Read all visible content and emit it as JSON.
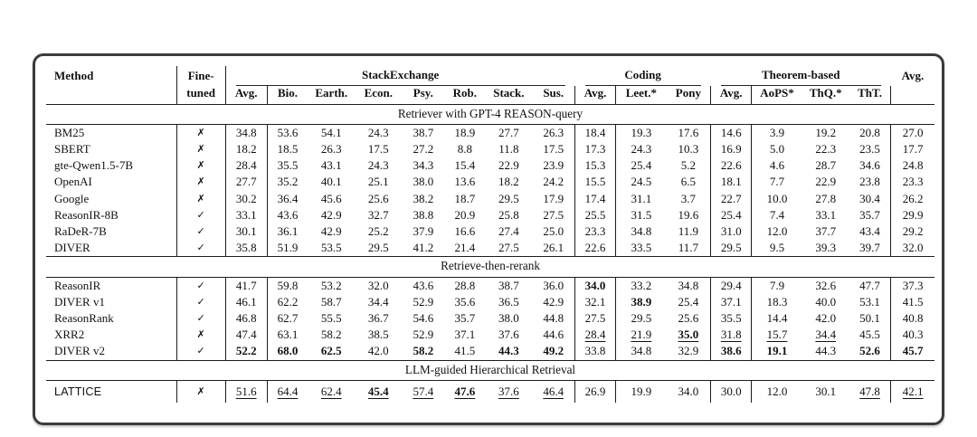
{
  "marks": {
    "yes": "✓",
    "no": "✗"
  },
  "table": {
    "header": {
      "method": "Method",
      "finetuned": [
        "Fine-",
        "tuned"
      ],
      "groups": [
        {
          "label": "StackExchange",
          "cols": [
            "Avg.",
            "Bio.",
            "Earth.",
            "Econ.",
            "Psy.",
            "Rob.",
            "Stack.",
            "Sus."
          ]
        },
        {
          "label": "Coding",
          "cols": [
            "Avg.",
            "Leet.*",
            "Pony"
          ]
        },
        {
          "label": "Theorem-based",
          "cols": [
            "Avg.",
            "AoPS*",
            "ThQ.*",
            "ThT."
          ]
        }
      ],
      "subcols": [
        "Avg.",
        "Bio.",
        "Earth.",
        "Econ.",
        "Psy.",
        "Rob.",
        "Stack.",
        "Sus.",
        "Avg.",
        "Leet.*",
        "Pony",
        "Avg.",
        "AoPS*",
        "ThQ.*",
        "ThT."
      ],
      "overall": "Avg."
    },
    "sections": [
      {
        "title": "Retriever with GPT-4 REASON-query",
        "rows": [
          {
            "method": "BM25",
            "finetuned": false,
            "values": [
              "34.8",
              "53.6",
              "54.1",
              "24.3",
              "38.7",
              "18.9",
              "27.7",
              "26.3",
              "18.4",
              "19.3",
              "17.6",
              "14.6",
              "3.9",
              "19.2",
              "20.8",
              "27.0"
            ],
            "bold": [],
            "underline": []
          },
          {
            "method": "SBERT",
            "finetuned": false,
            "values": [
              "18.2",
              "18.5",
              "26.3",
              "17.5",
              "27.2",
              "8.8",
              "11.8",
              "17.5",
              "17.3",
              "24.3",
              "10.3",
              "16.9",
              "5.0",
              "22.3",
              "23.5",
              "17.7"
            ],
            "bold": [],
            "underline": []
          },
          {
            "method": "gte-Qwen1.5-7B",
            "finetuned": false,
            "values": [
              "28.4",
              "35.5",
              "43.1",
              "24.3",
              "34.3",
              "15.4",
              "22.9",
              "23.9",
              "15.3",
              "25.4",
              "5.2",
              "22.6",
              "4.6",
              "28.7",
              "34.6",
              "24.8"
            ],
            "bold": [],
            "underline": []
          },
          {
            "method": "OpenAI",
            "finetuned": false,
            "values": [
              "27.7",
              "35.2",
              "40.1",
              "25.1",
              "38.0",
              "13.6",
              "18.2",
              "24.2",
              "15.5",
              "24.5",
              "6.5",
              "18.1",
              "7.7",
              "22.9",
              "23.8",
              "23.3"
            ],
            "bold": [],
            "underline": []
          },
          {
            "method": "Google",
            "finetuned": false,
            "values": [
              "30.2",
              "36.4",
              "45.6",
              "25.6",
              "38.2",
              "18.7",
              "29.5",
              "17.9",
              "17.4",
              "31.1",
              "3.7",
              "22.7",
              "10.0",
              "27.8",
              "30.4",
              "26.2"
            ],
            "bold": [],
            "underline": []
          },
          {
            "method": "ReasonIR-8B",
            "finetuned": true,
            "values": [
              "33.1",
              "43.6",
              "42.9",
              "32.7",
              "38.8",
              "20.9",
              "25.8",
              "27.5",
              "25.5",
              "31.5",
              "19.6",
              "25.4",
              "7.4",
              "33.1",
              "35.7",
              "29.9"
            ],
            "bold": [],
            "underline": []
          },
          {
            "method": "RaDeR-7B",
            "finetuned": true,
            "values": [
              "30.1",
              "36.1",
              "42.9",
              "25.2",
              "37.9",
              "16.6",
              "27.4",
              "25.0",
              "23.3",
              "34.8",
              "11.9",
              "31.0",
              "12.0",
              "37.7",
              "43.4",
              "29.2"
            ],
            "bold": [],
            "underline": []
          },
          {
            "method": "DIVER",
            "finetuned": true,
            "values": [
              "35.8",
              "51.9",
              "53.5",
              "29.5",
              "41.2",
              "21.4",
              "27.5",
              "26.1",
              "22.6",
              "33.5",
              "11.7",
              "29.5",
              "9.5",
              "39.3",
              "39.7",
              "32.0"
            ],
            "bold": [],
            "underline": []
          }
        ]
      },
      {
        "title": "Retrieve-then-rerank",
        "rows": [
          {
            "method": "ReasonIR",
            "finetuned": true,
            "values": [
              "41.7",
              "59.8",
              "53.2",
              "32.0",
              "43.6",
              "28.8",
              "38.7",
              "36.0",
              "34.0",
              "33.2",
              "34.8",
              "29.4",
              "7.9",
              "32.6",
              "47.7",
              "37.3"
            ],
            "bold": [
              8
            ],
            "underline": []
          },
          {
            "method": "DIVER v1",
            "finetuned": true,
            "values": [
              "46.1",
              "62.2",
              "58.7",
              "34.4",
              "52.9",
              "35.6",
              "36.5",
              "42.9",
              "32.1",
              "38.9",
              "25.4",
              "37.1",
              "18.3",
              "40.0",
              "53.1",
              "41.5"
            ],
            "bold": [
              9
            ],
            "underline": []
          },
          {
            "method": "ReasonRank",
            "finetuned": true,
            "values": [
              "46.8",
              "62.7",
              "55.5",
              "36.7",
              "54.6",
              "35.7",
              "38.0",
              "44.8",
              "27.5",
              "29.5",
              "25.6",
              "35.5",
              "14.4",
              "42.0",
              "50.1",
              "40.8"
            ],
            "bold": [],
            "underline": []
          },
          {
            "method": "XRR2",
            "finetuned": false,
            "values": [
              "47.4",
              "63.1",
              "58.2",
              "38.5",
              "52.9",
              "37.1",
              "37.6",
              "44.6",
              "28.4",
              "21.9",
              "35.0",
              "31.8",
              "15.7",
              "34.4",
              "45.5",
              "40.3"
            ],
            "bold": [
              10
            ],
            "underline": [
              8,
              9,
              10,
              11,
              12,
              13
            ]
          },
          {
            "method": "DIVER v2",
            "finetuned": true,
            "values": [
              "52.2",
              "68.0",
              "62.5",
              "42.0",
              "58.2",
              "41.5",
              "44.3",
              "49.2",
              "33.8",
              "34.8",
              "32.9",
              "38.6",
              "19.1",
              "44.3",
              "52.6",
              "45.7"
            ],
            "bold": [
              0,
              1,
              2,
              4,
              6,
              7,
              11,
              12,
              14,
              15
            ],
            "underline": []
          }
        ]
      },
      {
        "title": "LLM-guided Hierarchical Retrieval",
        "rows": [
          {
            "method": "LATTICE",
            "finetuned": false,
            "sans": true,
            "roomy": true,
            "values": [
              "51.6",
              "64.4",
              "62.4",
              "45.4",
              "57.4",
              "47.6",
              "37.6",
              "46.4",
              "26.9",
              "19.9",
              "34.0",
              "30.0",
              "12.0",
              "30.1",
              "47.8",
              "42.1"
            ],
            "bold": [
              3,
              5
            ],
            "underline": [
              0,
              1,
              2,
              3,
              4,
              5,
              6,
              7,
              14,
              15
            ]
          }
        ]
      }
    ]
  }
}
